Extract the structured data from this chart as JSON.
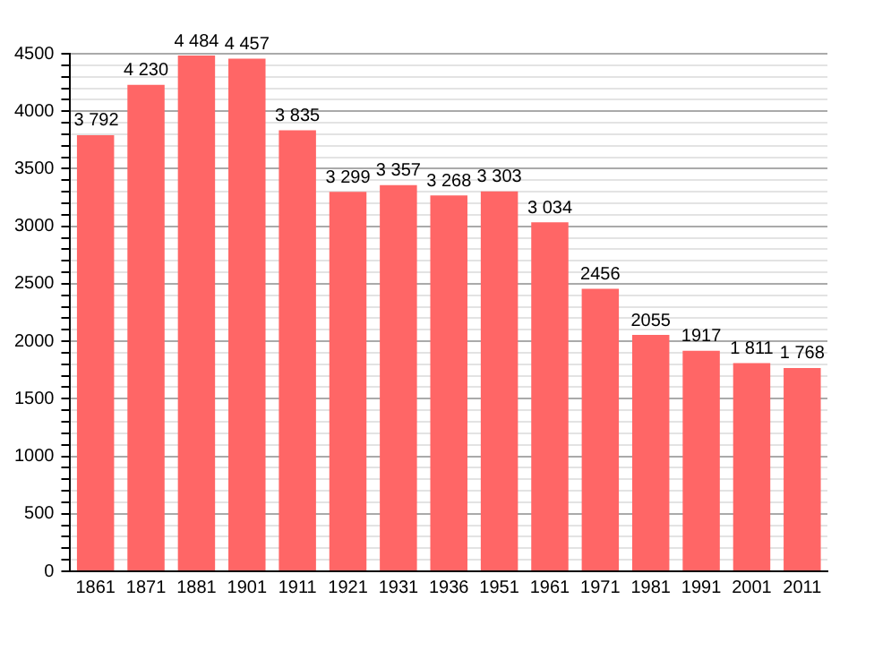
{
  "chart_data": {
    "type": "bar",
    "categories": [
      "1861",
      "1871",
      "1881",
      "1901",
      "1911",
      "1921",
      "1931",
      "1936",
      "1951",
      "1961",
      "1971",
      "1981",
      "1991",
      "2001",
      "2011"
    ],
    "values": [
      3792,
      4230,
      4484,
      4457,
      3835,
      3299,
      3357,
      3268,
      3303,
      3034,
      2456,
      2055,
      1917,
      1811,
      1768
    ],
    "value_labels": [
      "3 792",
      "4 230",
      "4 484",
      "4 457",
      "3 835",
      "3 299",
      "3 357",
      "3 268",
      "3 303",
      "3 034",
      "2456",
      "2055",
      "1917",
      "1 811",
      "1 768"
    ],
    "color": "#ff6666",
    "ylim": [
      0,
      4500
    ],
    "yticks": [
      0,
      {
        "value": 100,
        "label": null
      },
      {
        "value": 200,
        "label": null
      },
      {
        "value": 300,
        "label": null
      },
      {
        "value": 400,
        "label": null
      },
      500,
      {
        "value": 600,
        "label": null
      },
      {
        "value": 700,
        "label": null
      },
      {
        "value": 800,
        "label": null
      },
      {
        "value": 900,
        "label": null
      },
      1000,
      {
        "value": 1100,
        "label": null
      },
      {
        "value": 1200,
        "label": null
      },
      {
        "value": 1300,
        "label": null
      },
      {
        "value": 1400,
        "label": null
      },
      1500,
      {
        "value": 1600,
        "label": null
      },
      {
        "value": 1700,
        "label": null
      },
      {
        "value": 1800,
        "label": null
      },
      {
        "value": 1900,
        "label": null
      },
      2000,
      {
        "value": 2100,
        "label": null
      },
      {
        "value": 2200,
        "label": null
      },
      {
        "value": 2300,
        "label": null
      },
      {
        "value": 2400,
        "label": null
      },
      2500,
      {
        "value": 2600,
        "label": null
      },
      {
        "value": 2700,
        "label": null
      },
      {
        "value": 2800,
        "label": null
      },
      {
        "value": 2900,
        "label": null
      },
      3000,
      {
        "value": 3100,
        "label": null
      },
      {
        "value": 3200,
        "label": null
      },
      {
        "value": 3300,
        "label": null
      },
      {
        "value": 3400,
        "label": null
      },
      3500,
      {
        "value": 3600,
        "label": null
      },
      {
        "value": 3700,
        "label": null
      },
      {
        "value": 3800,
        "label": null
      },
      {
        "value": 3900,
        "label": null
      },
      4000,
      {
        "value": 4100,
        "label": null
      },
      {
        "value": 4200,
        "label": null
      },
      {
        "value": 4300,
        "label": null
      },
      {
        "value": 4400,
        "label": null
      },
      4500
    ],
    "grid": "y",
    "legend": false
  }
}
